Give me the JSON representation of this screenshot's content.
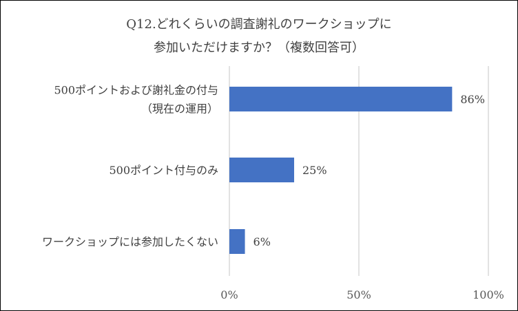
{
  "chart_data": {
    "type": "bar",
    "orientation": "horizontal",
    "title_lines": [
      "Q12.どれくらいの調査謝礼のワークショップに",
      "参加いただけますか？（複数回答可）"
    ],
    "categories": [
      [
        "500ポイントおよび謝礼金の付与",
        "（現在の運用）"
      ],
      [
        "500ポイント付与のみ"
      ],
      [
        "ワークショップには参加したくない"
      ]
    ],
    "values": [
      86,
      25,
      6
    ],
    "data_labels": [
      "86%",
      "25%",
      "6%"
    ],
    "xlim": [
      0,
      100
    ],
    "xticks": [
      0,
      50,
      100
    ],
    "xtick_labels": [
      "0%",
      "50%",
      "100%"
    ],
    "grid": true,
    "legend": "none",
    "bar_color": "#4472C4",
    "grid_color": "#D9D9D9"
  }
}
